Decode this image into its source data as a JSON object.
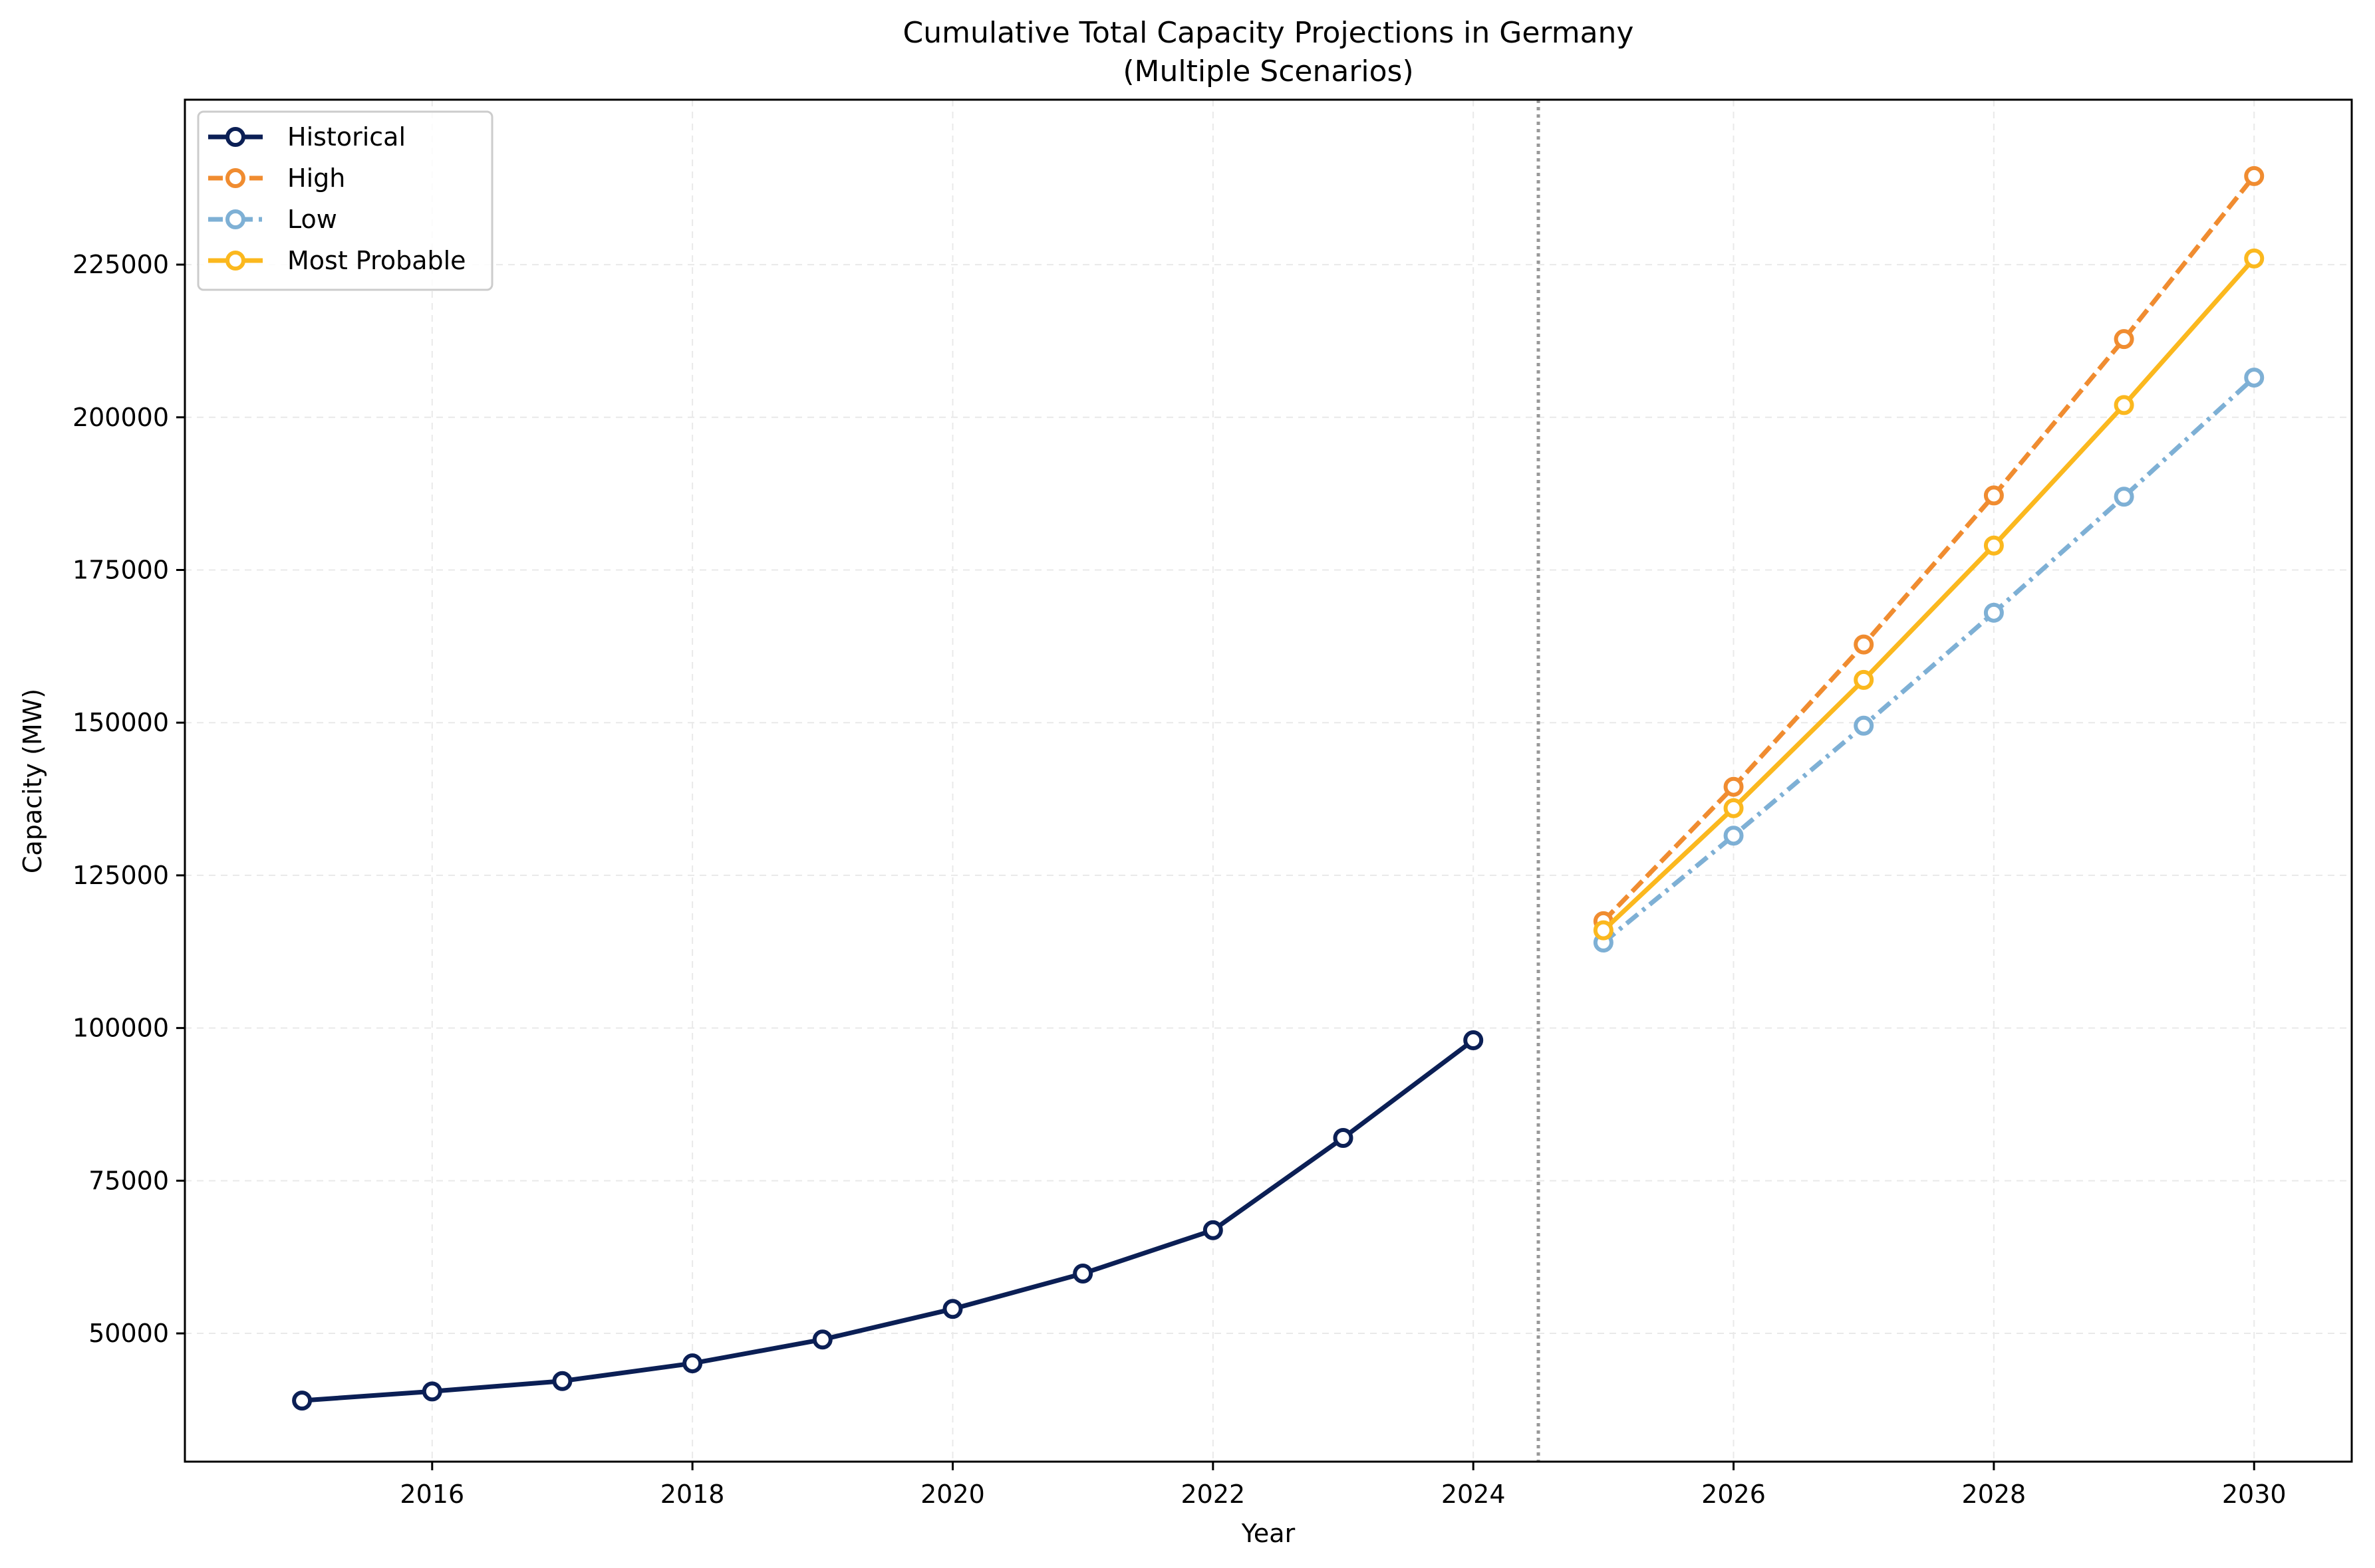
{
  "chart_data": {
    "type": "line",
    "title": "Cumulative Total Capacity Projections in Germany",
    "subtitle": "(Multiple Scenarios)",
    "xlabel": "Year",
    "ylabel": "Capacity (MW)",
    "xlim": [
      2014.1,
      2030.75
    ],
    "ylim": [
      29000,
      252000
    ],
    "xticks": [
      2016,
      2018,
      2020,
      2022,
      2024,
      2026,
      2028,
      2030
    ],
    "yticks": [
      50000,
      75000,
      100000,
      125000,
      150000,
      175000,
      200000,
      225000
    ],
    "grid": true,
    "legend_position": "top-left",
    "divider_x": 2024.5,
    "series": [
      {
        "name": "Historical",
        "color": "#0b1f55",
        "dash": "solid",
        "x": [
          2015,
          2016,
          2017,
          2018,
          2019,
          2020,
          2021,
          2022,
          2023,
          2024
        ],
        "values": [
          39000,
          40500,
          42200,
          45100,
          49000,
          54000,
          59800,
          66900,
          82000,
          98000
        ]
      },
      {
        "name": "High",
        "color": "#f08c30",
        "dash": "dashed",
        "x": [
          2025,
          2026,
          2027,
          2028,
          2029,
          2030
        ],
        "values": [
          117500,
          139500,
          162800,
          187200,
          212800,
          239500
        ]
      },
      {
        "name": "Low",
        "color": "#7eb0d5",
        "dash": "dashdot",
        "x": [
          2025,
          2026,
          2027,
          2028,
          2029,
          2030
        ],
        "values": [
          114000,
          131500,
          149500,
          168000,
          187000,
          206500
        ]
      },
      {
        "name": "Most Probable",
        "color": "#fbb81e",
        "dash": "solid",
        "x": [
          2025,
          2026,
          2027,
          2028,
          2029,
          2030
        ],
        "values": [
          116000,
          136000,
          157000,
          179000,
          202000,
          226000
        ]
      }
    ]
  }
}
